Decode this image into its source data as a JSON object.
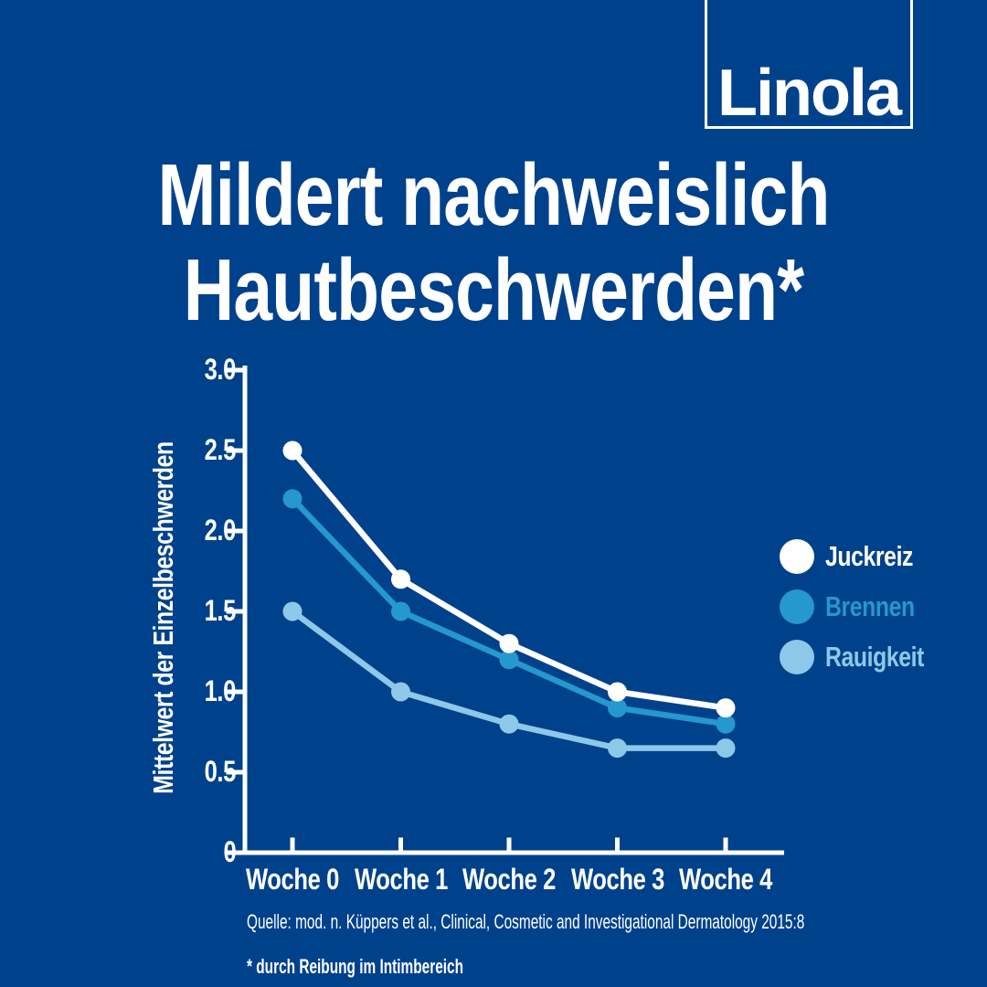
{
  "logo": {
    "text": "Linola"
  },
  "title": {
    "line1": "Mildert nachweislich",
    "line2": "Hautbeschwerden*"
  },
  "chart_data": {
    "type": "line",
    "x": [
      "Woche 0",
      "Woche 1",
      "Woche 2",
      "Woche 3",
      "Woche 4"
    ],
    "series": [
      {
        "name": "Juckreiz",
        "color": "#ffffff",
        "values": [
          2.5,
          1.7,
          1.3,
          1.0,
          0.9
        ]
      },
      {
        "name": "Brennen",
        "color": "#2598ce",
        "values": [
          2.2,
          1.5,
          1.2,
          0.9,
          0.8
        ]
      },
      {
        "name": "Rauigkeit",
        "color": "#8dc8e8",
        "values": [
          1.5,
          1.0,
          0.8,
          0.65,
          0.65
        ]
      }
    ],
    "ylabel": "Mittelwert der Einzelbeschwerden",
    "xlabel": "",
    "yticks": [
      0,
      0.5,
      1.0,
      1.5,
      2.0,
      2.5,
      3.0
    ],
    "ytick_labels": [
      "0",
      "0.5",
      "1.0",
      "1.5",
      "2.0",
      "2.5",
      "3.0"
    ],
    "ylim": [
      0,
      3.0
    ],
    "grid": false,
    "legend_position": "right"
  },
  "footer": {
    "source": "Quelle: mod. n. Küppers et al., Clinical, Cosmetic and Investigational Dermatology 2015:8",
    "footnote": "* durch Reibung im Intimbereich"
  },
  "colors": {
    "background": "#00418c",
    "axis": "#ffffff",
    "juckreiz": "#ffffff",
    "brennen": "#2598ce",
    "rauigkeit": "#8dc8e8"
  }
}
